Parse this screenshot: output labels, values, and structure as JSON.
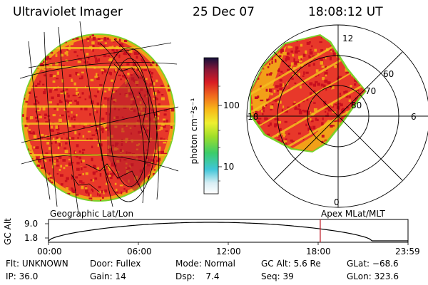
{
  "header": {
    "instrument": "Ultraviolet Imager",
    "date": "25 Dec 07",
    "time": "18:08:12 UT"
  },
  "colorbar": {
    "label": "photon cm⁻²s⁻¹",
    "ticks": [
      "100",
      "10"
    ]
  },
  "panels": {
    "left_caption": "Geographic Lat/Lon",
    "right_caption": "Apex MLat/MLT",
    "polar_labels": {
      "top": "12",
      "left": "18",
      "right": "6",
      "bottom": "0",
      "lat60": "60",
      "lat70": "70",
      "lat80": "80"
    }
  },
  "altitude_plot": {
    "ylabel": "GC Alt",
    "ymax": "9.0",
    "ymin": "1.8",
    "xticks": [
      "00:00",
      "06:00",
      "12:00",
      "18:00",
      "23:59"
    ],
    "current_time_hours": 18.14
  },
  "status": {
    "row1": [
      {
        "label": "Flt:",
        "value": "UNKNOWN"
      },
      {
        "label": "Door:",
        "value": "Fullex"
      },
      {
        "label": "Mode:",
        "value": "Normal"
      },
      {
        "label": "GC Alt:",
        "value": "5.6 Re"
      },
      {
        "label": "GLat:",
        "value": "−68.6"
      }
    ],
    "row2": [
      {
        "label": "IP:",
        "value": "36.0"
      },
      {
        "label": "Gain:",
        "value": "14"
      },
      {
        "label": "Dsp:",
        "value": "7.4"
      },
      {
        "label": "Seq:",
        "value": "39"
      },
      {
        "label": "GLon:",
        "value": "323.6"
      }
    ]
  },
  "colors": {
    "disk_fill": "#e8382a",
    "disk_rim": "#f2a018",
    "speckle": "#c80f1e",
    "band": "#f5c020",
    "edge": "#7ad22a"
  }
}
